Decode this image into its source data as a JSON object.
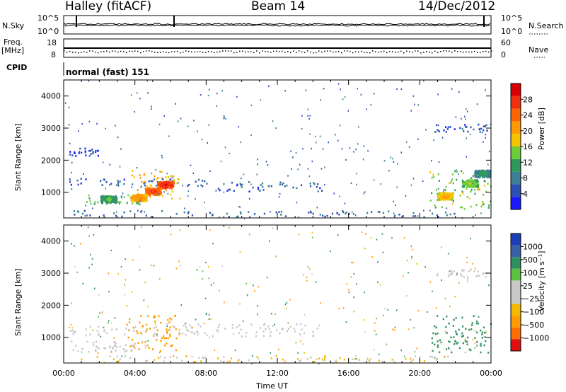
{
  "header": {
    "station": "Halley (fitACF)",
    "beam": "Beam 14",
    "date": "14/Dec/2012"
  },
  "strips": {
    "nsky_label": "N.Sky",
    "nsky_ticks": [
      "10^5",
      "10^0"
    ],
    "nsearch_label": "N.Search",
    "freq_label_line1": "Freq.",
    "freq_label_line2": "[MHz]",
    "freq_ticks": [
      "18",
      "8"
    ],
    "nave_label": "Nave",
    "nave_ticks": [
      "60",
      "0"
    ],
    "cpid_label": "CPID",
    "cpid_value": "normal (fast) 151"
  },
  "chart_data": [
    {
      "type": "heatmap",
      "panel": "power",
      "ylabel": "Slant Range [km]",
      "yticks": [
        1000,
        2000,
        3000,
        4000
      ],
      "ylim": [
        200,
        4500
      ],
      "xlim": [
        0,
        24
      ],
      "colorbar": {
        "label": "Power [dB]",
        "ticks": [
          4,
          8,
          12,
          16,
          20,
          24,
          28
        ],
        "colors": [
          "#1a1aff",
          "#2b4fb5",
          "#3d7f96",
          "#2e9a5a",
          "#6ccc3a",
          "#f5c400",
          "#ff9a00",
          "#ff6400",
          "#f03010",
          "#d80000"
        ]
      },
      "regions": [
        {
          "t0": 0.3,
          "t1": 8.5,
          "r0": 1200,
          "r1": 1450,
          "v": 5
        },
        {
          "t0": 8.5,
          "t1": 14.5,
          "r0": 1050,
          "r1": 1350,
          "v": 5
        },
        {
          "t0": 1.0,
          "t1": 4.5,
          "r0": 650,
          "r1": 950,
          "v": 12
        },
        {
          "t0": 3.8,
          "t1": 6.5,
          "r0": 800,
          "r1": 1700,
          "v": 18
        },
        {
          "t0": 0.3,
          "t1": 22.0,
          "r0": 250,
          "r1": 450,
          "v": 6
        },
        {
          "t0": 0.3,
          "t1": 2.0,
          "r0": 2150,
          "r1": 2400,
          "v": 4
        },
        {
          "t0": 20.8,
          "t1": 23.8,
          "r0": 2900,
          "r1": 3150,
          "v": 5
        },
        {
          "t0": 20.5,
          "t1": 24.0,
          "r0": 500,
          "r1": 1700,
          "v": 13
        }
      ],
      "cores": [
        {
          "t": 5.0,
          "r": 1050,
          "v": 26
        },
        {
          "t": 5.7,
          "r": 1250,
          "v": 28
        },
        {
          "t": 4.2,
          "r": 850,
          "v": 22
        },
        {
          "t": 2.5,
          "r": 800,
          "v": 14
        },
        {
          "t": 22.8,
          "r": 1300,
          "v": 16
        },
        {
          "t": 21.4,
          "r": 900,
          "v": 20
        },
        {
          "t": 23.5,
          "r": 1600,
          "v": 12
        }
      ]
    },
    {
      "type": "heatmap",
      "panel": "velocity",
      "ylabel": "Slant Range [km]",
      "yticks": [
        1000,
        2000,
        3000,
        4000
      ],
      "ylim": [
        200,
        4500
      ],
      "xlim": [
        0,
        24
      ],
      "xlabel": "Time UT",
      "xticks": [
        "00:00",
        "04:00",
        "08:00",
        "12:00",
        "16:00",
        "20:00",
        "00:00"
      ],
      "colorbar": {
        "label": "Velocity [m s⁻¹]",
        "ticks": [
          "1000",
          "500",
          "100",
          "25",
          "−25",
          "−100",
          "−500",
          "−1000"
        ],
        "colors": [
          "#1c3fb8",
          "#3a61a8",
          "#2f8f5f",
          "#5cc040",
          "#c8c8c8",
          "#c8c8c8",
          "#f5b800",
          "#ff9a00",
          "#ff6e00",
          "#e01010"
        ]
      },
      "regions": [
        {
          "t0": 0.3,
          "t1": 4.5,
          "r0": 550,
          "r1": 900,
          "v": 0
        },
        {
          "t0": 3.5,
          "t1": 6.5,
          "r0": 600,
          "r1": 1700,
          "v": -120
        },
        {
          "t0": 0.3,
          "t1": 14.5,
          "r0": 1050,
          "r1": 1450,
          "v": 0
        },
        {
          "t0": 20.5,
          "t1": 24.0,
          "r0": 550,
          "r1": 1700,
          "v": 200
        },
        {
          "t0": 20.8,
          "t1": 23.8,
          "r0": 2900,
          "r1": 3150,
          "v": 0
        },
        {
          "t0": 0.3,
          "t1": 22.0,
          "r0": 250,
          "r1": 450,
          "v": -30
        }
      ]
    }
  ]
}
